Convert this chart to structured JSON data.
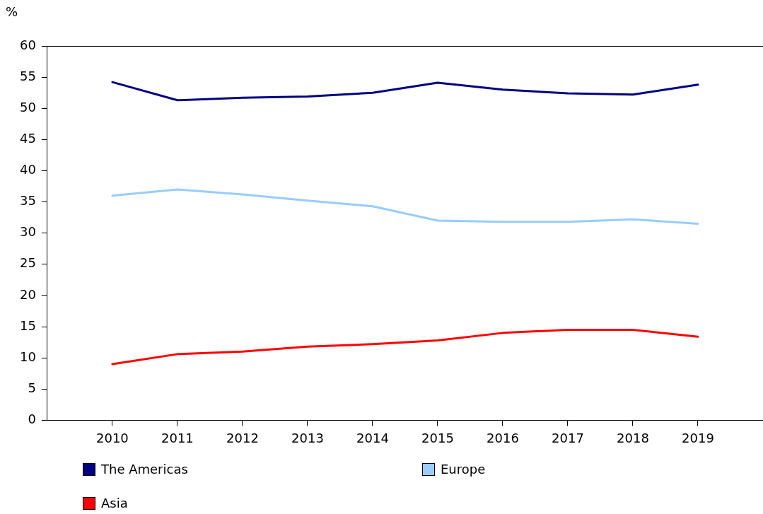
{
  "chart_data": {
    "type": "line",
    "ylabel": "%",
    "x": [
      2010,
      2011,
      2012,
      2013,
      2014,
      2015,
      2016,
      2017,
      2018,
      2019
    ],
    "xlim": [
      2009,
      2020
    ],
    "xticks": [
      2010,
      2011,
      2012,
      2013,
      2014,
      2015,
      2016,
      2017,
      2018,
      2019
    ],
    "ylim": [
      0,
      60
    ],
    "yticks": [
      0,
      5,
      10,
      15,
      20,
      25,
      30,
      35,
      40,
      45,
      50,
      55,
      60
    ],
    "grid": false,
    "legend": "bottom",
    "marker": "none",
    "line_style": "solid",
    "series": [
      {
        "name": "The Americas",
        "color": "#000080",
        "values": [
          54.2,
          51.3,
          51.7,
          51.9,
          52.5,
          54.1,
          53.0,
          52.4,
          52.2,
          53.8
        ]
      },
      {
        "name": "Europe",
        "color": "#99ccff",
        "values": [
          36.0,
          37.0,
          36.2,
          35.2,
          34.3,
          32.0,
          31.8,
          31.8,
          32.2,
          31.5
        ]
      },
      {
        "name": "Asia",
        "color": "#ff0000",
        "values": [
          9.0,
          10.6,
          11.0,
          11.8,
          12.2,
          12.8,
          14.0,
          14.5,
          14.5,
          13.4
        ]
      }
    ]
  }
}
